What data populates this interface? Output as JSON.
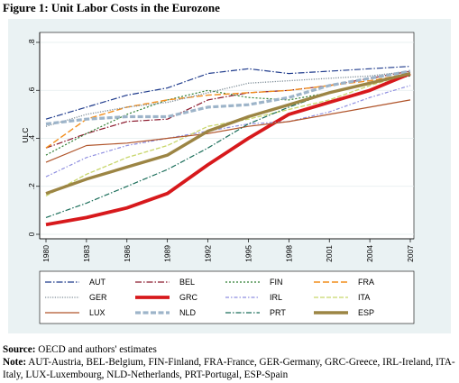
{
  "figure_title": "Figure 1: Unit Labor Costs in the Eurozone",
  "source_label": "Source:",
  "source_text": "OECD and authors' estimates",
  "note_label": "Note:",
  "note_text": "AUT-Austria, BEL-Belgium, FIN-Finland, FRA-France, GER-Germany, GRC-Greece, IRL-Ireland, ITA-Italy, LUX-Luxembourg, NLD-Netherlands, PRT-Portugal, ESP-Spain",
  "chart_data": {
    "type": "line",
    "title": "",
    "xlabel": "",
    "ylabel": "ULC",
    "xlim": [
      1980,
      2007
    ],
    "ylim": [
      0,
      0.8
    ],
    "xticks": [
      1980,
      1983,
      1986,
      1989,
      1992,
      1995,
      1998,
      2001,
      2004,
      2007
    ],
    "yticks": [
      0,
      0.2,
      0.4,
      0.6,
      0.8
    ],
    "ytick_labels": [
      "0",
      ".2",
      ".4",
      ".6",
      ".8"
    ],
    "grid": true,
    "legend_position": "bottom",
    "x": [
      1980,
      1983,
      1986,
      1989,
      1992,
      1995,
      1998,
      2001,
      2004,
      2007
    ],
    "series": [
      {
        "name": "AUT",
        "color": "#1f3b8c",
        "dash": "7,2,1.5,2",
        "width": 1.2,
        "values": [
          0.48,
          0.53,
          0.58,
          0.61,
          0.67,
          0.69,
          0.67,
          0.68,
          0.69,
          0.7
        ]
      },
      {
        "name": "BEL",
        "color": "#8b1a2e",
        "dash": "7,2,1.5,2",
        "width": 1.2,
        "values": [
          0.36,
          0.42,
          0.47,
          0.48,
          0.56,
          0.59,
          0.6,
          0.62,
          0.65,
          0.68
        ]
      },
      {
        "name": "FIN",
        "color": "#2e7d32",
        "dash": "2,2",
        "width": 1.2,
        "values": [
          0.33,
          0.42,
          0.5,
          0.56,
          0.6,
          0.57,
          0.56,
          0.59,
          0.63,
          0.66
        ]
      },
      {
        "name": "FRA",
        "color": "#f28e1c",
        "dash": "7,3",
        "width": 1.4,
        "values": [
          0.36,
          0.48,
          0.53,
          0.56,
          0.58,
          0.59,
          0.6,
          0.62,
          0.64,
          0.67
        ]
      },
      {
        "name": "GER",
        "color": "#7d8c96",
        "dash": "1.2,1.5",
        "width": 1.3,
        "values": [
          0.45,
          0.5,
          0.53,
          0.55,
          0.59,
          0.63,
          0.64,
          0.65,
          0.66,
          0.68
        ]
      },
      {
        "name": "GRC",
        "color": "#d7191c",
        "dash": "",
        "width": 3.8,
        "values": [
          0.04,
          0.07,
          0.11,
          0.17,
          0.29,
          0.4,
          0.5,
          0.55,
          0.6,
          0.67
        ]
      },
      {
        "name": "IRL",
        "color": "#8e8ee0",
        "dash": "4,2,1.5,2",
        "width": 1.2,
        "values": [
          0.24,
          0.32,
          0.37,
          0.4,
          0.43,
          0.46,
          0.47,
          0.51,
          0.57,
          0.62
        ]
      },
      {
        "name": "ITA",
        "color": "#c8d66a",
        "dash": "5,2",
        "width": 1.3,
        "values": [
          0.16,
          0.25,
          0.32,
          0.37,
          0.45,
          0.48,
          0.52,
          0.56,
          0.62,
          0.67
        ]
      },
      {
        "name": "LUX",
        "color": "#b0542a",
        "dash": "",
        "width": 1.2,
        "values": [
          0.3,
          0.37,
          0.38,
          0.4,
          0.42,
          0.45,
          0.47,
          0.5,
          0.53,
          0.56
        ]
      },
      {
        "name": "NLD",
        "color": "#9db4c9",
        "dash": "6,2.5",
        "width": 3.2,
        "values": [
          0.46,
          0.48,
          0.49,
          0.49,
          0.53,
          0.54,
          0.57,
          0.62,
          0.65,
          0.68
        ]
      },
      {
        "name": "PRT",
        "color": "#1b6e5a",
        "dash": "6,2,1.5,2",
        "width": 1.2,
        "values": [
          0.07,
          0.13,
          0.2,
          0.27,
          0.36,
          0.46,
          0.53,
          0.59,
          0.63,
          0.67
        ]
      },
      {
        "name": "ESP",
        "color": "#9c8544",
        "dash": "",
        "width": 3.4,
        "values": [
          0.17,
          0.23,
          0.28,
          0.33,
          0.43,
          0.49,
          0.54,
          0.59,
          0.63,
          0.67
        ]
      }
    ]
  }
}
